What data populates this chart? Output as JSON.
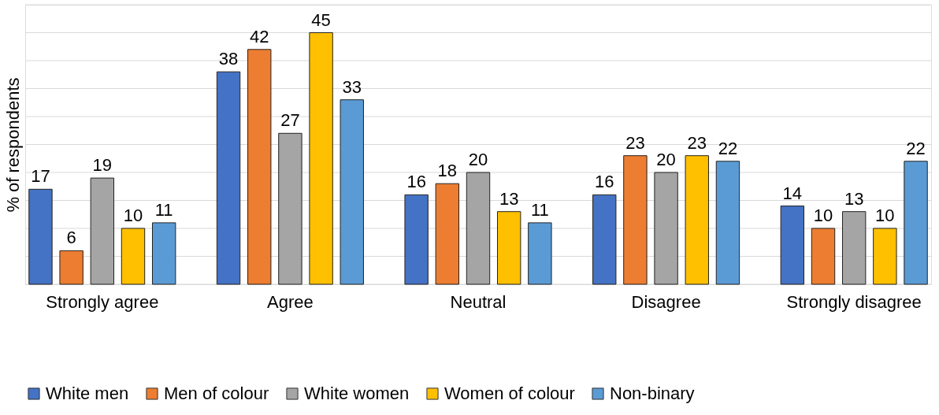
{
  "chart_data": {
    "type": "bar",
    "ylabel": "% of respondents",
    "categories": [
      "Strongly agree",
      "Agree",
      "Neutral",
      "Disagree",
      "Strongly disagree"
    ],
    "series": [
      {
        "name": "White men",
        "color": "#4472c4",
        "values": [
          17,
          38,
          16,
          16,
          14
        ]
      },
      {
        "name": "Men of colour",
        "color": "#ed7d31",
        "values": [
          6,
          42,
          18,
          23,
          10
        ]
      },
      {
        "name": "White women",
        "color": "#a5a5a5",
        "values": [
          19,
          27,
          20,
          20,
          13
        ]
      },
      {
        "name": "Women of colour",
        "color": "#ffc000",
        "values": [
          10,
          45,
          13,
          23,
          10
        ]
      },
      {
        "name": "Non-binary",
        "color": "#5b9bd5",
        "values": [
          11,
          33,
          11,
          22,
          22
        ]
      }
    ],
    "ylim": [
      0,
      50
    ],
    "yticks": [
      {
        "value": 0,
        "label": null
      },
      {
        "value": 5,
        "label": null
      },
      {
        "value": 10,
        "label": null
      },
      {
        "value": 15,
        "label": null
      },
      {
        "value": 20,
        "label": null
      },
      {
        "value": 25,
        "label": null
      },
      {
        "value": 30,
        "label": null
      },
      {
        "value": 35,
        "label": null
      },
      {
        "value": 40,
        "label": null
      },
      {
        "value": 45,
        "label": null
      },
      {
        "value": 50,
        "label": null
      }
    ],
    "tick_labels": "x",
    "grid": "y",
    "legend": "bottom",
    "data_labels": true
  }
}
